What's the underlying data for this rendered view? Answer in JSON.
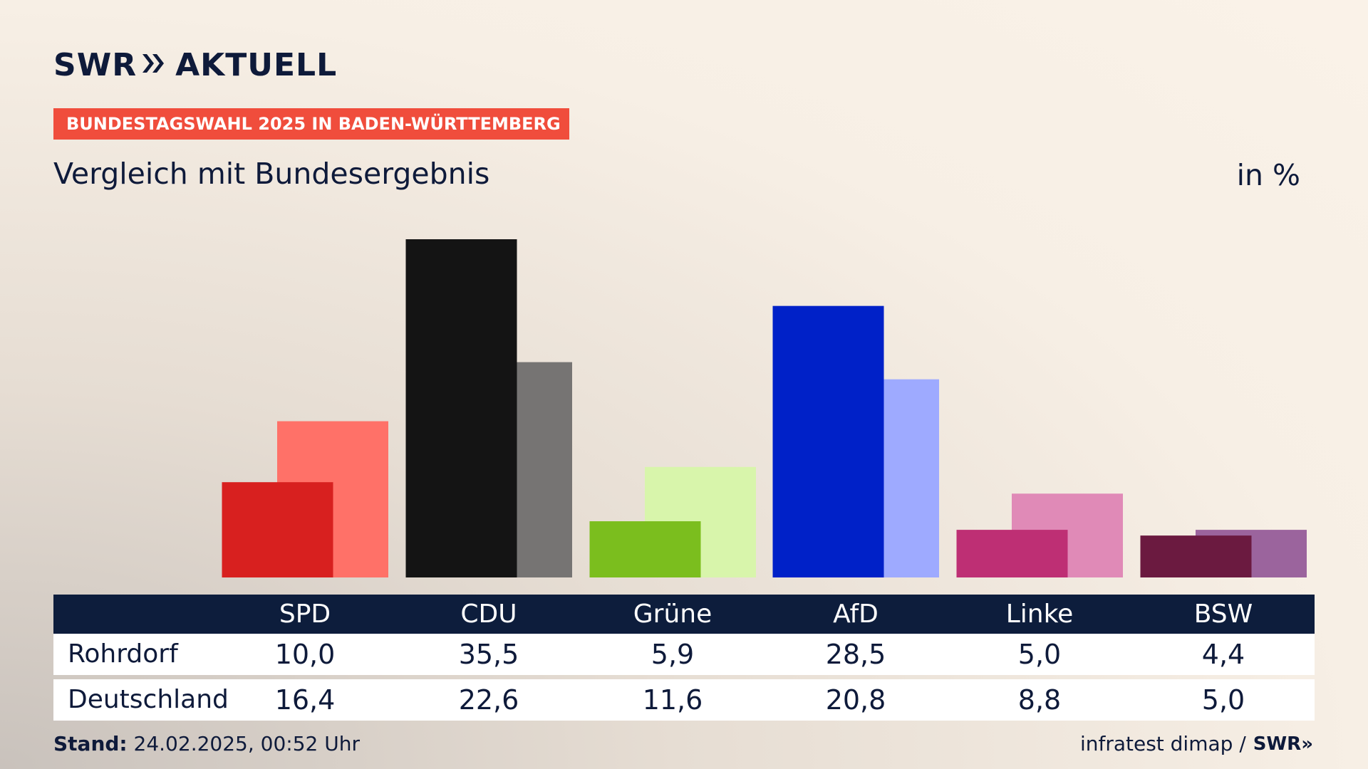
{
  "brand": {
    "logo_text": "SWR",
    "logo_suffix": "AKTUELL",
    "logo_arrows": "»",
    "source_logo": "SWR»"
  },
  "banner": "BUNDESTAGSWAHL 2025 IN BADEN-WÜRTTEMBERG",
  "subtitle": "Vergleich mit Bundesergebnis",
  "unit": "in %",
  "table": {
    "rows": [
      {
        "label": "Rohrdorf",
        "values": [
          "10,0",
          "35,5",
          "5,9",
          "28,5",
          "5,0",
          "4,4"
        ]
      },
      {
        "label": "Deutschland",
        "values": [
          "16,4",
          "22,6",
          "11,6",
          "20,8",
          "8,8",
          "5,0"
        ]
      }
    ]
  },
  "footer": {
    "stand_label": "Stand:",
    "stand_value": "24.02.2025, 00:52 Uhr",
    "source": "infratest dimap /"
  },
  "chart_data": {
    "type": "bar",
    "categories": [
      "SPD",
      "CDU",
      "Grüne",
      "AfD",
      "Linke",
      "BSW"
    ],
    "series": [
      {
        "name": "Rohrdorf",
        "values": [
          10.0,
          35.5,
          5.9,
          28.5,
          5.0,
          4.4
        ],
        "colors": [
          "#d8201f",
          "#141414",
          "#7bbe1e",
          "#0021c8",
          "#be2f74",
          "#6b1a40"
        ]
      },
      {
        "name": "Deutschland",
        "values": [
          16.4,
          22.6,
          11.6,
          20.8,
          8.8,
          5.0
        ],
        "colors": [
          "#ff7168",
          "#767473",
          "#d8f5ab",
          "#9eaaff",
          "#e08ab7",
          "#9b649d"
        ]
      }
    ],
    "ylim": [
      0,
      35.5
    ],
    "grid": false
  }
}
